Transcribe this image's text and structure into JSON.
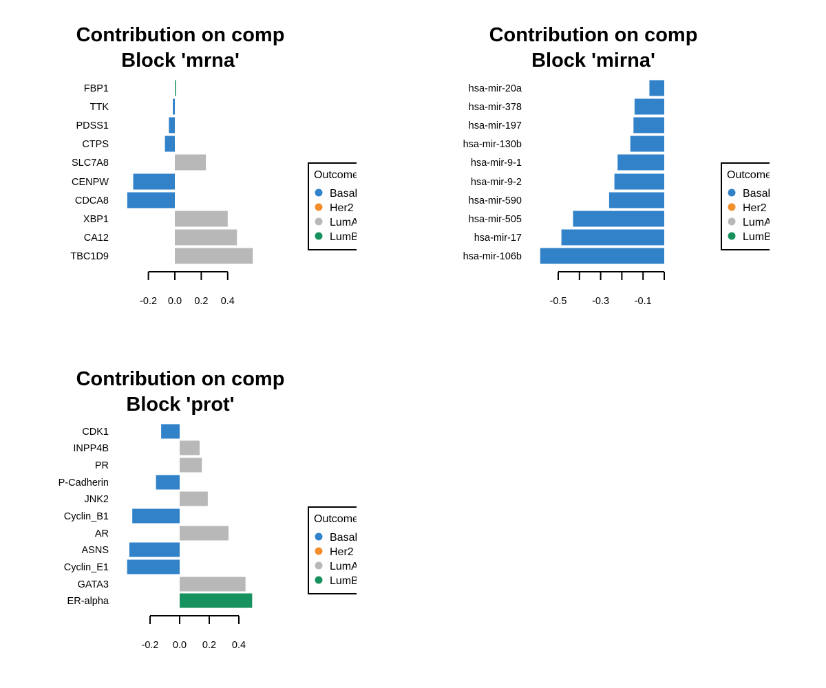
{
  "colors": {
    "Basal": "#3182C8",
    "Her2": "#F28E2C",
    "LumA": "#B8B8B8",
    "LumB": "#17915E"
  },
  "chart_data": [
    {
      "type": "bar",
      "orientation": "horizontal",
      "title_lines": [
        "Contribution on comp",
        "Block 'mrna'"
      ],
      "categories": [
        "FBP1",
        "TTK",
        "PDSS1",
        "CTPS",
        "SLC7A8",
        "CENPW",
        "CDCA8",
        "XBP1",
        "CA12",
        "TBC1D9"
      ],
      "values": [
        0.003,
        -0.015,
        -0.045,
        -0.075,
        0.235,
        -0.315,
        -0.36,
        0.4,
        0.47,
        0.59
      ],
      "groups": [
        "LumB",
        "Basal",
        "Basal",
        "Basal",
        "LumA",
        "Basal",
        "Basal",
        "LumA",
        "LumA",
        "LumA"
      ],
      "xticks": [
        -0.2,
        0.0,
        0.2,
        0.4
      ],
      "xtick_labels": [
        "-0.2",
        "0.0",
        "0.2",
        "0.4"
      ],
      "legend": {
        "title": "Outcome",
        "entries": [
          "Basal",
          "Her2",
          "LumA",
          "LumB"
        ],
        "placement": "right"
      }
    },
    {
      "type": "bar",
      "orientation": "horizontal",
      "title_lines": [
        "Contribution on comp",
        "Block 'mirna'"
      ],
      "categories": [
        "hsa-mir-20a",
        "hsa-mir-378",
        "hsa-mir-197",
        "hsa-mir-130b",
        "hsa-mir-9-1",
        "hsa-mir-9-2",
        "hsa-mir-590",
        "hsa-mir-505",
        "hsa-mir-17",
        "hsa-mir-106b"
      ],
      "values": [
        -0.07,
        -0.14,
        -0.145,
        -0.16,
        -0.22,
        -0.235,
        -0.26,
        -0.43,
        -0.485,
        -0.585
      ],
      "groups": [
        "Basal",
        "Basal",
        "Basal",
        "Basal",
        "Basal",
        "Basal",
        "Basal",
        "Basal",
        "Basal",
        "Basal"
      ],
      "xticks": [
        -0.5,
        -0.4,
        -0.3,
        -0.2,
        -0.1,
        0.0
      ],
      "xtick_labels": [
        "-0.5",
        "",
        "-0.3",
        "",
        "-0.1",
        ""
      ],
      "legend": {
        "title": "Outcome",
        "entries": [
          "Basal",
          "Her2",
          "LumA",
          "LumB"
        ],
        "placement": "right"
      }
    },
    {
      "type": "bar",
      "orientation": "horizontal",
      "title_lines": [
        "Contribution on comp",
        "Block 'prot'"
      ],
      "categories": [
        "CDK1",
        "INPP4B",
        "PR",
        "P-Cadherin",
        "JNK2",
        "Cyclin_B1",
        "AR",
        "ASNS",
        "Cyclin_E1",
        "GATA3",
        "ER-alpha"
      ],
      "values": [
        -0.125,
        0.135,
        0.15,
        -0.16,
        0.19,
        -0.32,
        0.33,
        -0.34,
        -0.355,
        0.445,
        0.49
      ],
      "groups": [
        "Basal",
        "LumA",
        "LumA",
        "Basal",
        "LumA",
        "Basal",
        "LumA",
        "Basal",
        "Basal",
        "LumA",
        "LumB"
      ],
      "xticks": [
        -0.2,
        0.0,
        0.2,
        0.4
      ],
      "xtick_labels": [
        "-0.2",
        "0.0",
        "0.2",
        "0.4"
      ],
      "legend": {
        "title": "Outcome",
        "entries": [
          "Basal",
          "Her2",
          "LumA",
          "LumB"
        ],
        "placement": "right"
      }
    }
  ]
}
